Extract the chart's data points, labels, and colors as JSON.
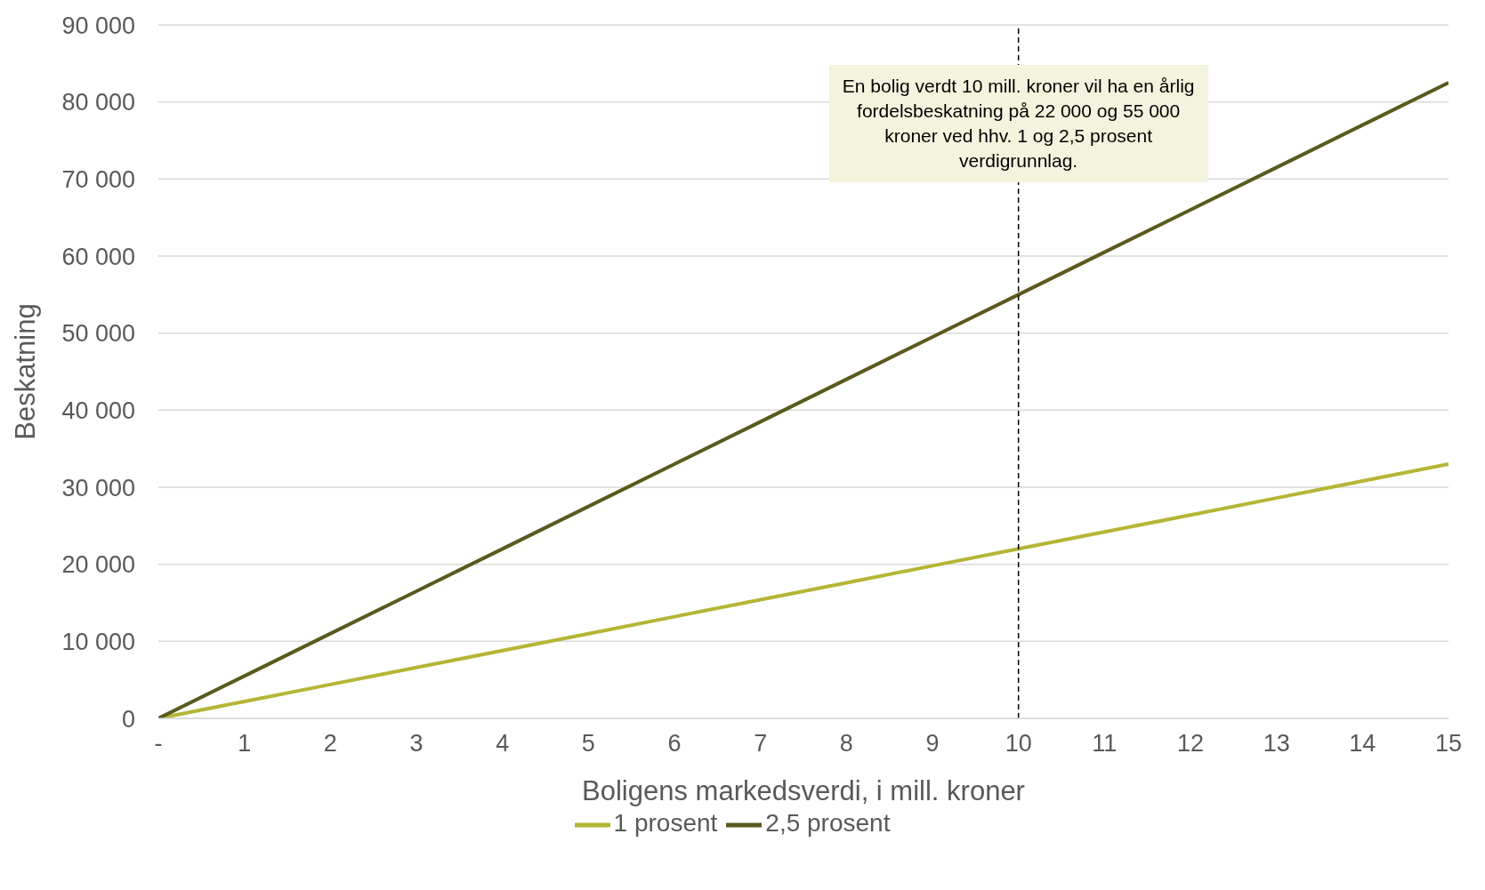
{
  "chart_data": {
    "type": "line",
    "xlabel": "Boligens markedsverdi, i mill. kroner",
    "ylabel": "Beskatning",
    "x": [
      0,
      1,
      2,
      3,
      4,
      5,
      6,
      7,
      8,
      9,
      10,
      11,
      12,
      13,
      14,
      15
    ],
    "series": [
      {
        "name": "1 prosent",
        "color": "#b5b536",
        "values": [
          0,
          2200,
          4400,
          6600,
          8800,
          11000,
          13200,
          15400,
          17600,
          19800,
          22000,
          24200,
          26400,
          28600,
          30800,
          33000
        ]
      },
      {
        "name": "2,5 prosent",
        "color": "#5a5a1e",
        "values": [
          0,
          5500,
          11000,
          16500,
          22000,
          27500,
          33000,
          38500,
          44000,
          49500,
          55000,
          60500,
          66000,
          71500,
          77000,
          82500
        ]
      }
    ],
    "xlim": [
      0,
      15
    ],
    "xticks": [
      {
        "value": 0,
        "label": "-"
      },
      1,
      2,
      3,
      4,
      5,
      6,
      7,
      8,
      9,
      10,
      11,
      12,
      13,
      14,
      15
    ],
    "ylim": [
      0,
      90000
    ],
    "yticks": [
      {
        "value": 0,
        "label": "0"
      },
      {
        "value": 10000,
        "label": "10 000"
      },
      {
        "value": 20000,
        "label": "20 000"
      },
      {
        "value": 30000,
        "label": "30 000"
      },
      {
        "value": 40000,
        "label": "40 000"
      },
      {
        "value": 50000,
        "label": "50 000"
      },
      {
        "value": 60000,
        "label": "60 000"
      },
      {
        "value": 70000,
        "label": "70 000"
      },
      {
        "value": 80000,
        "label": "80 000"
      },
      {
        "value": 90000,
        "label": "90 000"
      }
    ],
    "grid": "y",
    "legend": "bottom",
    "marker": "none",
    "line_style": "solid",
    "ref_lines": [
      {
        "axis": "x",
        "value": 10,
        "color": "#000000",
        "line_style": "dashed"
      }
    ],
    "annotations": [
      "En bolig verdt 10 mill. kroner vil ha en årlig fordelsbeskatning på 22 000 og 55 000 kroner ved hhv. 1 og 2,5 prosent verdigrunnlag."
    ]
  }
}
